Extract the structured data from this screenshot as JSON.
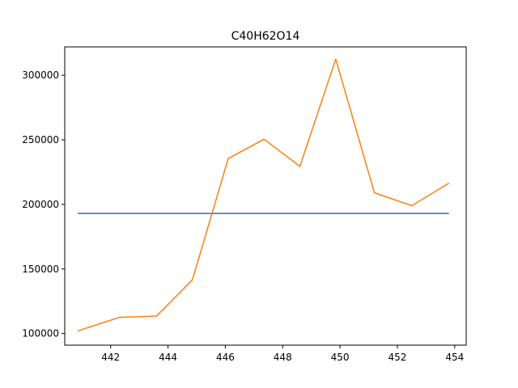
{
  "chart_data": {
    "type": "line",
    "title": "C40H62O14",
    "xlabel": "",
    "ylabel": "",
    "xlim": [
      440.4,
      454.4
    ],
    "ylim": [
      91000,
      322000
    ],
    "grid": false,
    "x_ticks": [
      442,
      444,
      446,
      448,
      450,
      452,
      454
    ],
    "y_ticks": [
      100000,
      150000,
      200000,
      250000,
      300000
    ],
    "x_tick_labels": [
      "442",
      "444",
      "446",
      "448",
      "450",
      "452",
      "454"
    ],
    "y_tick_labels": [
      "100000",
      "150000",
      "200000",
      "250000",
      "300000"
    ],
    "series": [
      {
        "color": "#1f77b4",
        "x": [
          440.85,
          453.8
        ],
        "y": [
          193000,
          193000
        ]
      },
      {
        "color": "#ff7f0e",
        "x": [
          440.85,
          442.3,
          443.6,
          444.85,
          446.1,
          447.35,
          448.6,
          449.85,
          451.2,
          452.5,
          453.8
        ],
        "y": [
          102000,
          112500,
          113500,
          141500,
          235500,
          250500,
          229500,
          312500,
          209000,
          199000,
          216500
        ]
      }
    ]
  }
}
